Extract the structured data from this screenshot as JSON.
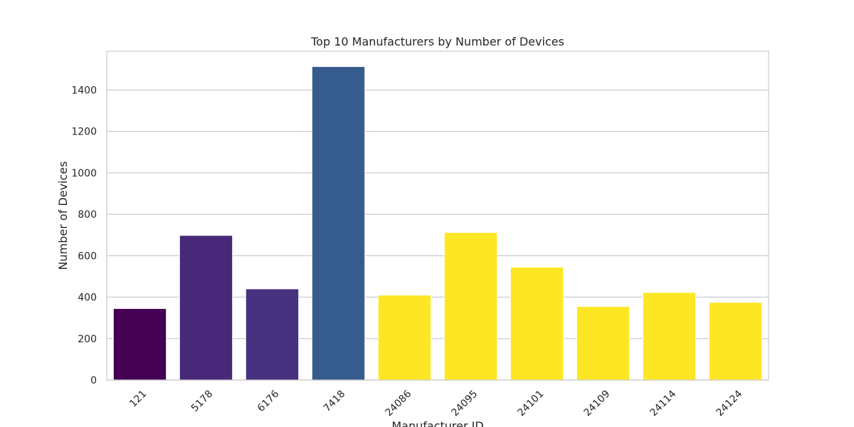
{
  "chart_data": {
    "type": "bar",
    "title": "Top 10 Manufacturers by Number of Devices",
    "xlabel": "Manufacturer ID",
    "ylabel": "Number of Devices",
    "categories": [
      "121",
      "5178",
      "6176",
      "7418",
      "24086",
      "24095",
      "24101",
      "24109",
      "24114",
      "24124"
    ],
    "values": [
      345,
      698,
      440,
      1513,
      410,
      712,
      545,
      355,
      423,
      375
    ],
    "colors": [
      "#440154",
      "#482878",
      "#46327e",
      "#365c8d",
      "#fde725",
      "#fde725",
      "#fde725",
      "#fde725",
      "#fde725",
      "#fde725"
    ],
    "ylim": [
      0,
      1587
    ],
    "yticks": [
      0,
      200,
      400,
      600,
      800,
      1000,
      1200,
      1400
    ],
    "grid": "horizontal"
  }
}
